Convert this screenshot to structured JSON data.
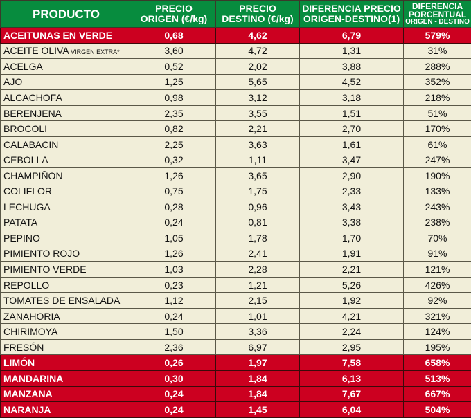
{
  "headers": {
    "producto": "PRODUCTO",
    "origen": [
      "PRECIO",
      "ORIGEN (€/kg)"
    ],
    "destino": [
      "PRECIO",
      "DESTINO (€/kg)"
    ],
    "diferencia": [
      "DIFERENCIA PRECIO",
      "ORIGEN-DESTINO(1)"
    ],
    "porcentual": [
      "DIFERENCIA",
      "PORCENTUAL",
      "ORIGEN - DESTINO"
    ]
  },
  "colors": {
    "header": "#078c3e",
    "highlight": "#cc0020",
    "row": "#f1eed9"
  },
  "rows": [
    {
      "producto": "ACEITUNAS EN VERDE",
      "origen": "0,68",
      "destino": "4,62",
      "diferencia": "6,79",
      "porcentaje": "579%",
      "highlight": true
    },
    {
      "producto": "ACEITE OLIVA",
      "suffix": " VIRGEN EXTRA*",
      "origen": "3,60",
      "destino": "4,72",
      "diferencia": "1,31",
      "porcentaje": "31%"
    },
    {
      "producto": "ACELGA",
      "origen": "0,52",
      "destino": "2,02",
      "diferencia": "3,88",
      "porcentaje": "288%"
    },
    {
      "producto": "AJO",
      "origen": "1,25",
      "destino": "5,65",
      "diferencia": "4,52",
      "porcentaje": "352%"
    },
    {
      "producto": "ALCACHOFA",
      "origen": "0,98",
      "destino": "3,12",
      "diferencia": "3,18",
      "porcentaje": "218%"
    },
    {
      "producto": "BERENJENA",
      "origen": "2,35",
      "destino": "3,55",
      "diferencia": "1,51",
      "porcentaje": "51%"
    },
    {
      "producto": "BROCOLI",
      "origen": "0,82",
      "destino": "2,21",
      "diferencia": "2,70",
      "porcentaje": "170%"
    },
    {
      "producto": "CALABACIN",
      "origen": "2,25",
      "destino": "3,63",
      "diferencia": "1,61",
      "porcentaje": "61%"
    },
    {
      "producto": "CEBOLLA",
      "origen": "0,32",
      "destino": "1,11",
      "diferencia": "3,47",
      "porcentaje": "247%"
    },
    {
      "producto": "CHAMPIÑON",
      "origen": "1,26",
      "destino": "3,65",
      "diferencia": "2,90",
      "porcentaje": "190%"
    },
    {
      "producto": "COLIFLOR",
      "origen": "0,75",
      "destino": "1,75",
      "diferencia": "2,33",
      "porcentaje": "133%"
    },
    {
      "producto": "LECHUGA",
      "origen": "0,28",
      "destino": "0,96",
      "diferencia": "3,43",
      "porcentaje": "243%"
    },
    {
      "producto": "PATATA",
      "origen": "0,24",
      "destino": "0,81",
      "diferencia": "3,38",
      "porcentaje": "238%"
    },
    {
      "producto": "PEPINO",
      "origen": "1,05",
      "destino": "1,78",
      "diferencia": "1,70",
      "porcentaje": "70%"
    },
    {
      "producto": "PIMIENTO ROJO",
      "origen": "1,26",
      "destino": "2,41",
      "diferencia": "1,91",
      "porcentaje": "91%"
    },
    {
      "producto": "PIMIENTO VERDE",
      "origen": "1,03",
      "destino": "2,28",
      "diferencia": "2,21",
      "porcentaje": "121%"
    },
    {
      "producto": "REPOLLO",
      "origen": "0,23",
      "destino": "1,21",
      "diferencia": "5,26",
      "porcentaje": "426%"
    },
    {
      "producto": "TOMATES DE ENSALADA",
      "origen": "1,12",
      "destino": "2,15",
      "diferencia": "1,92",
      "porcentaje": "92%"
    },
    {
      "producto": "ZANAHORIA",
      "origen": "0,24",
      "destino": "1,01",
      "diferencia": "4,21",
      "porcentaje": "321%"
    },
    {
      "producto": "CHIRIMOYA",
      "origen": "1,50",
      "destino": "3,36",
      "diferencia": "2,24",
      "porcentaje": "124%"
    },
    {
      "producto": "FRESÓN",
      "origen": "2,36",
      "destino": "6,97",
      "diferencia": "2,95",
      "porcentaje": "195%"
    },
    {
      "producto": "LIMÓN",
      "origen": "0,26",
      "destino": "1,97",
      "diferencia": "7,58",
      "porcentaje": "658%",
      "highlight": true
    },
    {
      "producto": "MANDARINA",
      "origen": "0,30",
      "destino": "1,84",
      "diferencia": "6,13",
      "porcentaje": "513%",
      "highlight": true
    },
    {
      "producto": "MANZANA",
      "origen": "0,24",
      "destino": "1,84",
      "diferencia": "7,67",
      "porcentaje": "667%",
      "highlight": true
    },
    {
      "producto": "NARANJA",
      "origen": "0,24",
      "destino": "1,45",
      "diferencia": "6,04",
      "porcentaje": "504%",
      "highlight": true
    }
  ]
}
